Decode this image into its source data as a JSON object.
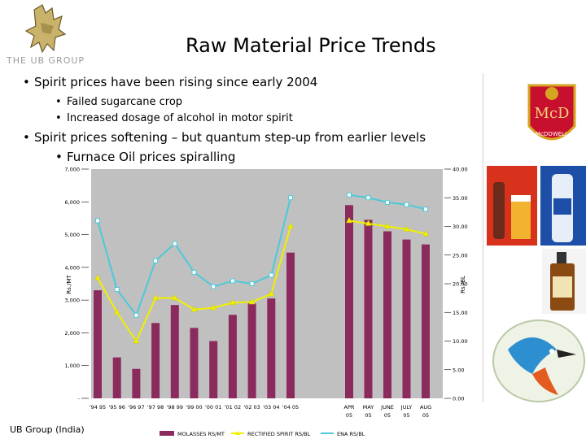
{
  "header": {
    "logo_text": "THE UB GROUP",
    "title": "Raw Material Price Trends"
  },
  "bullets": [
    {
      "text": "Spirit prices have been rising since early 2004",
      "level": 1
    },
    {
      "text": "Failed sugarcane crop",
      "level": 2
    },
    {
      "text": "Increased dosage of alcohol in motor spirit",
      "level": 2
    },
    {
      "text": "Spirit prices softening – but quantum step-up from earlier levels",
      "level": 1
    },
    {
      "text": "Furnace Oil prices spiralling",
      "level": 2
    }
  ],
  "footer": {
    "text": "UB Group (India)"
  },
  "side_images": {
    "brand_label": "McDOWELL"
  },
  "chart_data": {
    "type": "bar",
    "categories": [
      "'94 95",
      "'95 96",
      "'96 97",
      "'97 98",
      "'98 99",
      "'99 00",
      "'00 01",
      "'01 02",
      "'02 03",
      "'03 04",
      "'04 05",
      "APR 05",
      "MAY 05",
      "JUNE 05",
      "JULY 05",
      "AUG 05"
    ],
    "category_labels": [
      {
        "line1": "'94 95",
        "line2": ""
      },
      {
        "line1": "'95 96",
        "line2": ""
      },
      {
        "line1": "'96 97",
        "line2": ""
      },
      {
        "line1": "'97 98",
        "line2": ""
      },
      {
        "line1": "'98 99",
        "line2": ""
      },
      {
        "line1": "'99 00",
        "line2": ""
      },
      {
        "line1": "'00 01",
        "line2": ""
      },
      {
        "line1": "'01 02",
        "line2": ""
      },
      {
        "line1": "'02 03",
        "line2": ""
      },
      {
        "line1": "'03 04",
        "line2": ""
      },
      {
        "line1": "'04 05",
        "line2": ""
      },
      {
        "line1": "APR",
        "line2": "05"
      },
      {
        "line1": "MAY",
        "line2": "05"
      },
      {
        "line1": "JUNE",
        "line2": "05"
      },
      {
        "line1": "JULY",
        "line2": "05"
      },
      {
        "line1": "AUG",
        "line2": "05"
      }
    ],
    "series": [
      {
        "name": "MOLASSES RS/MT",
        "axis": "left",
        "kind": "bar",
        "color": "#8b2a5c",
        "values": [
          3300,
          1250,
          900,
          2300,
          2850,
          2150,
          1750,
          2550,
          2900,
          3050,
          4450,
          5900,
          5450,
          5100,
          4850,
          4700
        ]
      },
      {
        "name": "RECTIFIED SPIRIT RS/BL",
        "axis": "right",
        "kind": "line",
        "color": "#f0f000",
        "values": [
          21.0,
          15.0,
          10.0,
          17.5,
          17.5,
          15.5,
          15.8,
          16.7,
          16.8,
          18.2,
          30.0,
          31.0,
          30.5,
          30.0,
          29.5,
          28.7
        ]
      },
      {
        "name": "ENA RS/BL",
        "axis": "right",
        "kind": "line",
        "color": "#4cc9d8",
        "values": [
          31.0,
          19.0,
          14.5,
          24.0,
          27.0,
          22.0,
          19.5,
          20.5,
          20.0,
          21.5,
          35.0,
          35.5,
          35.0,
          34.2,
          33.8,
          33.0
        ]
      }
    ],
    "ylabel_left": "Rs./MT",
    "ylabel_right": "Rs./BL",
    "ylim_left": [
      0,
      7000
    ],
    "ylim_right": [
      0,
      40
    ],
    "yticks_left": [
      "-",
      "1,000",
      "2,000",
      "3,000",
      "4,000",
      "5,000",
      "6,000",
      "7,000"
    ],
    "yticks_right": [
      "0.00",
      "5.00",
      "10.00",
      "15.00",
      "20.00",
      "25.00",
      "30.00",
      "35.00",
      "40.00"
    ],
    "grid": false,
    "legend_position": "bottom",
    "colors": {
      "bar": "#8b2a5c",
      "rs_line": "#f0f000",
      "ena_line": "#4cc9d8",
      "plot_bg": "#c0c0c0"
    }
  }
}
